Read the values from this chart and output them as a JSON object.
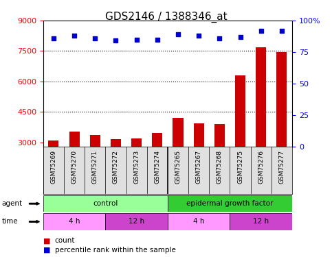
{
  "title": "GDS2146 / 1388346_at",
  "samples": [
    "GSM75269",
    "GSM75270",
    "GSM75271",
    "GSM75272",
    "GSM75273",
    "GSM75274",
    "GSM75265",
    "GSM75267",
    "GSM75268",
    "GSM75275",
    "GSM75276",
    "GSM75277"
  ],
  "bar_values": [
    3100,
    3550,
    3350,
    3150,
    3200,
    3450,
    4200,
    3950,
    3900,
    6300,
    7700,
    7450
  ],
  "percentile_values": [
    86,
    88,
    86,
    84,
    85,
    85,
    89,
    88,
    86,
    87,
    92,
    92
  ],
  "ylim_left": [
    2800,
    9000
  ],
  "ylim_right": [
    0,
    100
  ],
  "yticks_left": [
    3000,
    4500,
    6000,
    7500,
    9000
  ],
  "yticks_right": [
    0,
    25,
    50,
    75,
    100
  ],
  "bar_color": "#cc0000",
  "scatter_color": "#0000cc",
  "agent_groups": [
    {
      "label": "control",
      "start": 0,
      "end": 6,
      "color": "#99ff99"
    },
    {
      "label": "epidermal growth factor",
      "start": 6,
      "end": 12,
      "color": "#33cc33"
    }
  ],
  "time_groups": [
    {
      "label": "4 h",
      "start": 0,
      "end": 3,
      "color": "#ff99ff"
    },
    {
      "label": "12 h",
      "start": 3,
      "end": 6,
      "color": "#cc44cc"
    },
    {
      "label": "4 h",
      "start": 6,
      "end": 9,
      "color": "#ff99ff"
    },
    {
      "label": "12 h",
      "start": 9,
      "end": 12,
      "color": "#cc44cc"
    }
  ],
  "legend_count": "count",
  "legend_percentile": "percentile rank within the sample",
  "bg_color": "#e0e0e0",
  "plot_bg": "#ffffff",
  "title_fontsize": 11,
  "tick_fontsize": 8,
  "label_fontsize": 8
}
